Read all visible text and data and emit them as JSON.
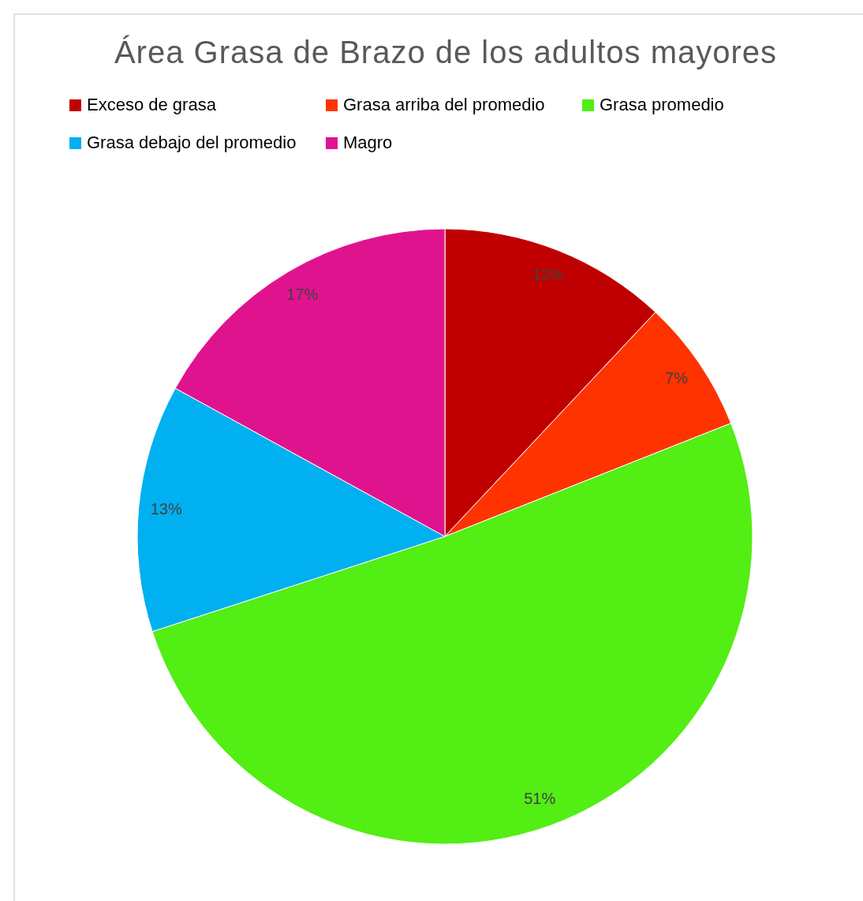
{
  "chart_data": {
    "type": "pie",
    "title": "Área Grasa de Brazo  de los adultos mayores",
    "categories": [
      "Exceso de grasa",
      "Grasa arriba del promedio",
      "Grasa promedio",
      "Grasa debajo del promedio",
      "Magro"
    ],
    "values": [
      12,
      7,
      51,
      13,
      17
    ],
    "colors": [
      "#c00000",
      "#ff3300",
      "#52ee14",
      "#00b0f0",
      "#e0138f"
    ],
    "value_labels": [
      "12%",
      "7%",
      "51%",
      "13%",
      "17%"
    ],
    "legend": "top"
  }
}
